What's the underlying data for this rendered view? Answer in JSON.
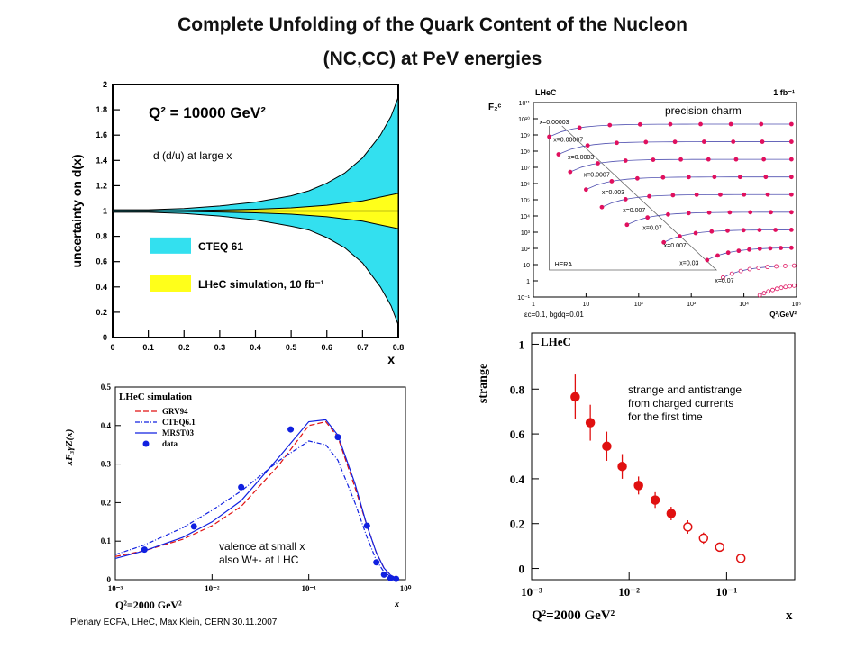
{
  "title_line1": "Complete Unfolding of the Quark Content of the Nucleon",
  "title_line2": "(NC,CC) at PeV energies",
  "footer": "Plenary ECFA, LHeC, Max Klein, CERN 30.11.2007",
  "annotations": {
    "d_large_x": "d (d/u) at large x",
    "precision_charm": "precision charm",
    "valence_small_x_1": "valence at small x",
    "valence_small_x_2": "also W+- at LHC",
    "strange_1": "strange and antistrange",
    "strange_2": "from charged currents",
    "strange_3": "for the first time"
  },
  "colors": {
    "cteq": "#33e0ef",
    "lhec": "#ffff1a",
    "red": "#e01010",
    "blue": "#1020e0",
    "magenta": "#e0105e"
  },
  "chart_data": [
    {
      "id": "ud",
      "type": "area",
      "inset_title": "Q² = 10000 GeV²",
      "xlabel": "x",
      "ylabel": "uncertainty on d(x)",
      "xlim": [
        0,
        0.8
      ],
      "ylim": [
        0,
        2
      ],
      "xticks": [
        "0",
        "0.1",
        "0.2",
        "0.3",
        "0.4",
        "0.5",
        "0.6",
        "0.7",
        "0.8"
      ],
      "yticks": [
        "0",
        "0.2",
        "0.4",
        "0.6",
        "0.8",
        "1",
        "1.2",
        "1.4",
        "1.6",
        "1.8",
        "2"
      ],
      "legend": [
        "CTEQ 61",
        "LHeC simulation, 10 fb⁻¹"
      ],
      "series": [
        {
          "name": "CTEQ 61",
          "x": [
            0,
            0.1,
            0.2,
            0.3,
            0.4,
            0.5,
            0.55,
            0.6,
            0.65,
            0.7,
            0.75,
            0.78,
            0.8
          ],
          "upper": [
            1.01,
            1.01,
            1.02,
            1.04,
            1.07,
            1.12,
            1.16,
            1.22,
            1.3,
            1.42,
            1.6,
            1.75,
            1.9
          ],
          "lower": [
            0.99,
            0.99,
            0.98,
            0.96,
            0.93,
            0.88,
            0.85,
            0.79,
            0.71,
            0.59,
            0.4,
            0.25,
            0.1
          ]
        },
        {
          "name": "LHeC simulation, 10 fb⁻¹",
          "x": [
            0,
            0.1,
            0.2,
            0.3,
            0.4,
            0.5,
            0.6,
            0.7,
            0.75,
            0.8
          ],
          "upper": [
            1.001,
            1.002,
            1.004,
            1.008,
            1.014,
            1.025,
            1.045,
            1.08,
            1.11,
            1.14
          ],
          "lower": [
            0.999,
            0.998,
            0.996,
            0.992,
            0.986,
            0.975,
            0.955,
            0.92,
            0.89,
            0.86
          ]
        }
      ]
    },
    {
      "id": "charm",
      "type": "scatter",
      "header_left": "LHeC",
      "header_right": "1 fb⁻¹",
      "ylabel": "F₂ᶜ",
      "xlabel": "Q²/GeV²",
      "footnote": "εc=0.1, bgdq=0.01",
      "xlim": [
        1,
        100000
      ],
      "xticks": [
        "1",
        "10",
        "10²",
        "10³",
        "10⁴",
        "10⁵"
      ],
      "yticks": [
        "10⁻¹",
        "1",
        "10",
        "10²",
        "10³",
        "10⁴",
        "10⁵",
        "10⁶",
        "10⁷",
        "10⁸",
        "10⁹",
        "10¹⁰",
        "10¹¹"
      ],
      "hera_label": "HERA",
      "series_labels": [
        "x=0.00003",
        "x=0.00007",
        "x=0.0003",
        "x=0.0007",
        "x=0.003",
        "x=0.007",
        "x=0.07",
        "x=0.007",
        "x=0.03",
        "x=0.07"
      ]
    },
    {
      "id": "xf3",
      "type": "line",
      "header": "LHeC simulation",
      "xlabel": "x",
      "ylabel": "xF₃γZ(x)",
      "q2_label": "Q²=2000 GeV²",
      "xlim": [
        0.001,
        1
      ],
      "ylim": [
        0,
        0.5
      ],
      "xticks": [
        "10⁻³",
        "10⁻²",
        "10⁻¹",
        "10⁰"
      ],
      "yticks": [
        "0",
        "0.1",
        "0.2",
        "0.3",
        "0.4",
        "0.5"
      ],
      "legend": [
        "GRV94",
        "CTEQ6.1",
        "MRST03",
        "data"
      ],
      "series": [
        {
          "name": "GRV94",
          "x": [
            0.001,
            0.002,
            0.005,
            0.01,
            0.02,
            0.05,
            0.1,
            0.15,
            0.2,
            0.3,
            0.4,
            0.5,
            0.6,
            0.7,
            0.8
          ],
          "y": [
            0.06,
            0.075,
            0.105,
            0.14,
            0.19,
            0.3,
            0.4,
            0.41,
            0.37,
            0.24,
            0.14,
            0.07,
            0.03,
            0.012,
            0.004
          ]
        },
        {
          "name": "CTEQ6.1",
          "x": [
            0.001,
            0.002,
            0.005,
            0.01,
            0.02,
            0.05,
            0.1,
            0.15,
            0.2,
            0.3,
            0.4,
            0.5,
            0.6,
            0.7,
            0.8
          ],
          "y": [
            0.065,
            0.09,
            0.135,
            0.18,
            0.23,
            0.31,
            0.36,
            0.35,
            0.31,
            0.2,
            0.11,
            0.05,
            0.02,
            0.008,
            0.002
          ]
        },
        {
          "name": "MRST03",
          "x": [
            0.001,
            0.002,
            0.005,
            0.01,
            0.02,
            0.05,
            0.1,
            0.15,
            0.2,
            0.3,
            0.4,
            0.5,
            0.6,
            0.7,
            0.8
          ],
          "y": [
            0.055,
            0.075,
            0.11,
            0.15,
            0.205,
            0.32,
            0.41,
            0.415,
            0.375,
            0.25,
            0.14,
            0.07,
            0.03,
            0.012,
            0.004
          ]
        },
        {
          "name": "data",
          "x": [
            0.002,
            0.0065,
            0.02,
            0.065,
            0.2,
            0.4,
            0.5,
            0.6,
            0.7,
            0.8
          ],
          "y": [
            0.078,
            0.138,
            0.24,
            0.39,
            0.37,
            0.14,
            0.045,
            0.013,
            0.004,
            0.002
          ]
        }
      ]
    },
    {
      "id": "strange",
      "type": "scatter",
      "header": "LHeC",
      "xlabel": "x",
      "ylabel": "strange",
      "q2_label": "Q²=2000 GeV²",
      "xlim": [
        0.001,
        0.5
      ],
      "ylim": [
        -0.05,
        1.05
      ],
      "xticks": [
        "10⁻³",
        "10⁻²",
        "10⁻¹"
      ],
      "yticks": [
        "0",
        "0.2",
        "0.4",
        "0.6",
        "0.8",
        "1"
      ],
      "series": [
        {
          "name": "filled",
          "x": [
            0.0028,
            0.004,
            0.0059,
            0.0085,
            0.0125,
            0.0185,
            0.027
          ],
          "y": [
            0.765,
            0.65,
            0.545,
            0.455,
            0.37,
            0.305,
            0.245
          ],
          "err": [
            0.1,
            0.08,
            0.065,
            0.055,
            0.04,
            0.035,
            0.03
          ]
        },
        {
          "name": "open",
          "x": [
            0.04,
            0.058,
            0.085,
            0.14
          ],
          "y": [
            0.185,
            0.135,
            0.095,
            0.045
          ],
          "err": [
            0.03,
            0.025,
            0.02,
            0.01
          ]
        }
      ]
    }
  ]
}
